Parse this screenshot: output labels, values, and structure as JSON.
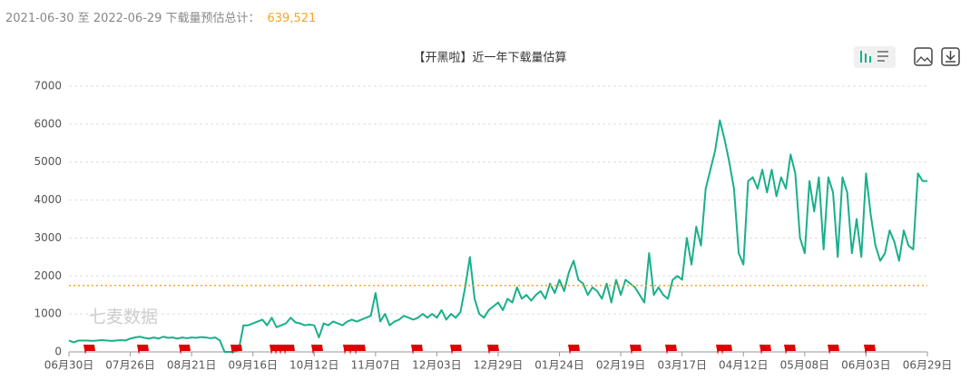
{
  "summary": {
    "label": "2021-06-30 至 2022-06-29 下载量预估总计：",
    "total": "639,521"
  },
  "chart_data": {
    "type": "line",
    "title": "【开黑啦】近一年下载量估算",
    "watermark": "七麦数据",
    "categories": [
      "06月30日",
      null,
      null,
      null,
      null,
      null,
      null,
      null,
      null,
      null,
      null,
      null,
      null,
      "07月26日",
      null,
      null,
      null,
      null,
      null,
      null,
      null,
      null,
      null,
      null,
      null,
      null,
      "08月21日",
      null,
      null,
      null,
      null,
      null,
      null,
      null,
      null,
      null,
      null,
      null,
      null,
      "09月16日",
      null,
      null,
      null,
      null,
      null,
      null,
      null,
      null,
      null,
      null,
      null,
      null,
      "10月12日",
      null,
      null,
      null,
      null,
      null,
      null,
      null,
      null,
      null,
      null,
      null,
      null,
      "11月07日",
      null,
      null,
      null,
      null,
      null,
      null,
      null,
      null,
      null,
      null,
      null,
      null,
      "12月03日",
      null,
      null,
      null,
      null,
      null,
      null,
      null,
      null,
      null,
      null,
      null,
      null,
      "12月29日",
      null,
      null,
      null,
      null,
      null,
      null,
      null,
      null,
      null,
      null,
      null,
      null,
      "01月24日",
      null,
      null,
      null,
      null,
      null,
      null,
      null,
      null,
      null,
      null,
      null,
      null,
      "02月19日",
      null,
      null,
      null,
      null,
      null,
      null,
      null,
      null,
      null,
      null,
      null,
      null,
      "03月17日",
      null,
      null,
      null,
      null,
      null,
      null,
      null,
      null,
      null,
      null,
      null,
      null,
      "04月12日",
      null,
      null,
      null,
      null,
      null,
      null,
      null,
      null,
      null,
      null,
      null,
      null,
      "05月08日",
      null,
      null,
      null,
      null,
      null,
      null,
      null,
      null,
      null,
      null,
      null,
      null,
      "06月03日",
      null,
      null,
      null,
      null,
      null,
      null,
      null,
      null,
      null,
      null,
      null,
      null,
      "06月29日"
    ],
    "series": [
      {
        "color": "#1aaf8b",
        "values": [
          300,
          250,
          300,
          300,
          300,
          290,
          300,
          310,
          300,
          290,
          300,
          310,
          300,
          350,
          380,
          400,
          370,
          350,
          380,
          350,
          400,
          370,
          380,
          350,
          380,
          360,
          380,
          370,
          390,
          380,
          360,
          380,
          300,
          0,
          0,
          0,
          50,
          700,
          700,
          750,
          800,
          850,
          700,
          900,
          650,
          700,
          750,
          900,
          780,
          750,
          700,
          720,
          700,
          380,
          750,
          700,
          800,
          750,
          700,
          800,
          850,
          800,
          850,
          900,
          950,
          1550,
          800,
          1000,
          700,
          800,
          850,
          950,
          900,
          850,
          900,
          1000,
          900,
          1000,
          900,
          1100,
          850,
          1000,
          900,
          1050,
          1700,
          2500,
          1400,
          1000,
          900,
          1100,
          1200,
          1300,
          1100,
          1400,
          1300,
          1700,
          1400,
          1500,
          1350,
          1500,
          1600,
          1400,
          1800,
          1550,
          1900,
          1600,
          2100,
          2400,
          1900,
          1800,
          1500,
          1700,
          1600,
          1400,
          1800,
          1300,
          1900,
          1500,
          1900,
          1800,
          1700,
          1500,
          1300,
          2600,
          1500,
          1700,
          1500,
          1400,
          1900,
          2000,
          1900,
          3000,
          2300,
          3300,
          2800,
          4300,
          4800,
          5300,
          6100,
          5600,
          5000,
          4300,
          2600,
          2300,
          4500,
          4600,
          4300,
          4800,
          4200,
          4800,
          4100,
          4600,
          4300,
          5200,
          4700,
          3000,
          2600,
          4500,
          3700,
          4600,
          2700,
          4600,
          4200,
          2500,
          4600,
          4200,
          2600,
          3500,
          2500,
          4700,
          3600,
          2800,
          2400,
          2600,
          3200,
          2900,
          2400,
          3200,
          2800,
          2700,
          4700,
          4500,
          4500
        ]
      }
    ],
    "average_line": {
      "value": 1750,
      "color": "#f5a623"
    },
    "ylim": [
      0,
      7000
    ],
    "yticks": [
      0,
      1000,
      2000,
      3000,
      4000,
      5000,
      6000,
      7000
    ],
    "grid": true
  }
}
